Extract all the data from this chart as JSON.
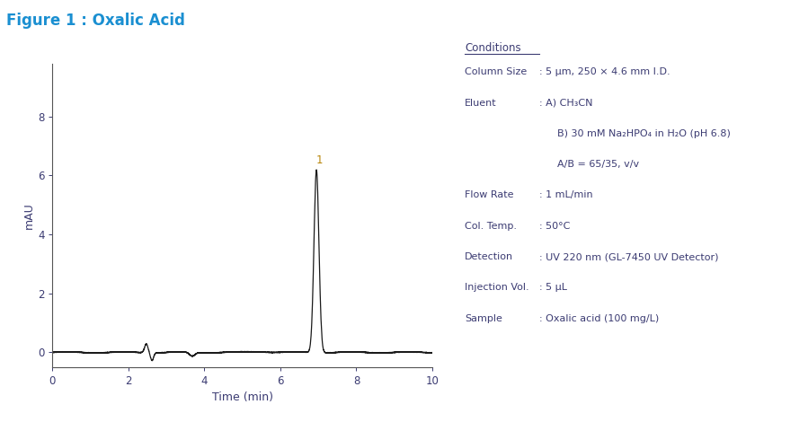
{
  "title": "Figure 1 : Oxalic Acid",
  "title_color": "#1a8fd1",
  "title_fontsize": 12,
  "xlabel": "Time (min)",
  "ylabel": "mAU",
  "xlim": [
    0,
    10
  ],
  "ylim": [
    -0.5,
    9.8
  ],
  "yticks": [
    0,
    2,
    4,
    6,
    8
  ],
  "xticks": [
    0,
    2,
    4,
    6,
    8,
    10
  ],
  "peak_time": 6.95,
  "peak_height": 6.2,
  "peak_label": "1",
  "peak_label_color": "#b8860b",
  "conditions_title": "Conditions",
  "cond_rows": [
    [
      "Column Size",
      ": 5 μm, 250 × 4.6 mm I.D."
    ],
    [
      "Eluent",
      ": A) CH₃CN"
    ],
    [
      "",
      "B) 30 mM Na₂HPO₄ in H₂O (pH 6.8)"
    ],
    [
      "",
      "A/B = 65/35, v/v"
    ],
    [
      "Flow Rate",
      ": 1 mL/min"
    ],
    [
      "Col. Temp.",
      ": 50°C"
    ],
    [
      "Detection",
      ": UV 220 nm (GL-7450 UV Detector)"
    ],
    [
      "Injection Vol.",
      ": 5 μL"
    ],
    [
      "Sample",
      ": Oxalic acid (100 mg/L)"
    ]
  ],
  "text_color": "#3b3b72",
  "background_color": "#ffffff",
  "line_color": "#1a1a1a",
  "line_width": 0.9,
  "cond_fontsize": 8.0,
  "cond_title_fontsize": 8.5
}
